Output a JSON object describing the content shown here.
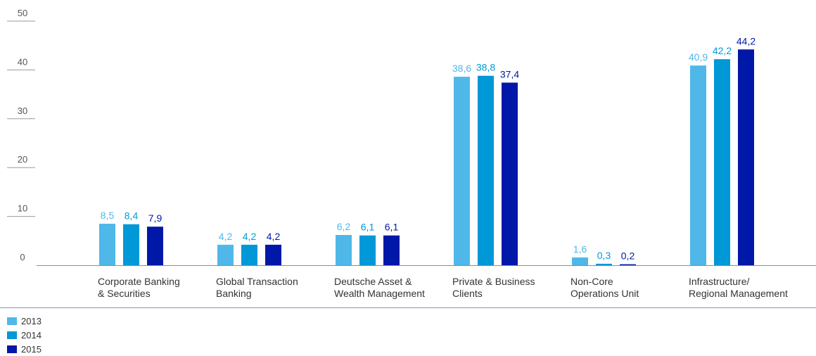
{
  "chart_data": {
    "type": "bar",
    "categories": [
      [
        "Corporate Banking",
        "& Securities"
      ],
      [
        "Global Transaction",
        "Banking"
      ],
      [
        "Deutsche Asset &",
        "Wealth Management"
      ],
      [
        "Private & Business",
        "Clients"
      ],
      [
        "Non-Core",
        "Operations Unit"
      ],
      [
        "Infrastructure/",
        "Regional Management"
      ]
    ],
    "series": [
      {
        "name": "2013",
        "color": "#4fb8e8",
        "values": [
          8.5,
          4.2,
          6.2,
          38.6,
          1.6,
          40.9
        ],
        "labels": [
          "8,5",
          "4,2",
          "6,2",
          "38,6",
          "1,6",
          "40,9"
        ]
      },
      {
        "name": "2014",
        "color": "#0098d7",
        "values": [
          8.4,
          4.2,
          6.1,
          38.8,
          0.3,
          42.2
        ],
        "labels": [
          "8,4",
          "4,2",
          "6,1",
          "38,8",
          "0,3",
          "42,2"
        ]
      },
      {
        "name": "2015",
        "color": "#0018a8",
        "values": [
          7.9,
          4.2,
          6.1,
          37.4,
          0.2,
          44.2
        ],
        "labels": [
          "7,9",
          "4,2",
          "6,1",
          "37,4",
          "0,2",
          "44,2"
        ]
      }
    ],
    "ylim": [
      0,
      50
    ],
    "yticks": [
      "0",
      "10",
      "20",
      "30",
      "40",
      "50"
    ],
    "title": "",
    "xlabel": "",
    "ylabel": "",
    "grid": false,
    "legend": "bottom-left",
    "axis_color": "#8a8fb5"
  }
}
